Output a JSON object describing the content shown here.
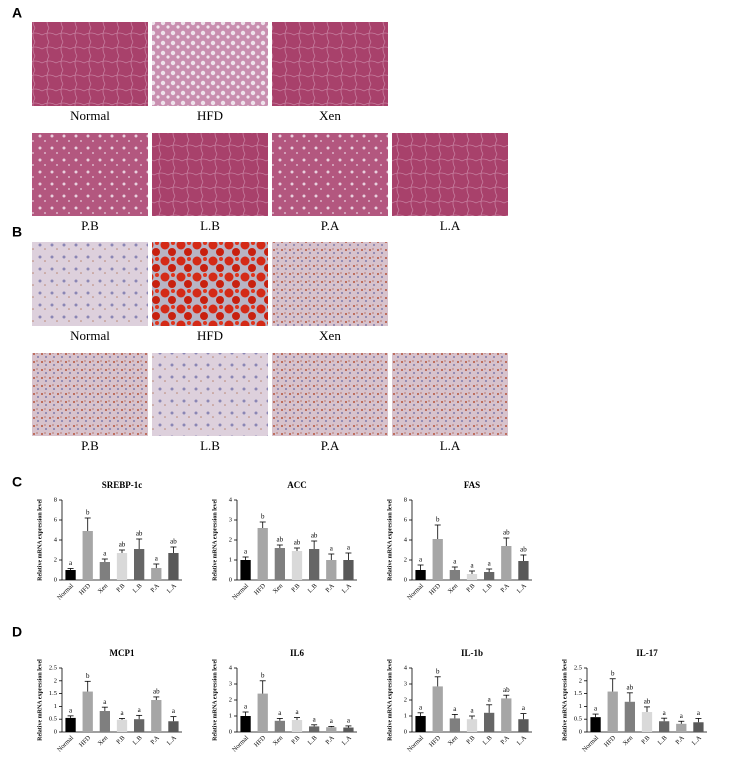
{
  "panel_labels": [
    "A",
    "B",
    "C",
    "D"
  ],
  "histology_a": {
    "labels": [
      "Normal",
      "HFD",
      "Xen",
      "P.B",
      "L.B",
      "P.A",
      "L.A"
    ]
  },
  "histology_b": {
    "labels": [
      "Normal",
      "HFD",
      "Xen",
      "P.B",
      "L.B",
      "P.A",
      "L.A"
    ]
  },
  "chart_data": [
    {
      "type": "bar",
      "title": "SREBP-1c",
      "y_label": "Relative mRNA expression level",
      "categories": [
        "Normal",
        "HFD",
        "Xen",
        "P.B",
        "L.B",
        "P.A",
        "L.A"
      ],
      "values": [
        1.0,
        4.9,
        1.8,
        2.7,
        3.1,
        1.2,
        2.7
      ],
      "errors": [
        0.15,
        1.3,
        0.3,
        0.3,
        1.0,
        0.4,
        0.6
      ],
      "annotations": [
        "a",
        "b",
        "a",
        "ab",
        "ab",
        "a",
        "ab"
      ],
      "colors": [
        "#000000",
        "#a6a6a6",
        "#7f7f7f",
        "#d9d9d9",
        "#666666",
        "#a6a6a6",
        "#595959"
      ],
      "ylim": [
        0,
        8
      ],
      "yticks": [
        0,
        2,
        4,
        6,
        8
      ]
    },
    {
      "type": "bar",
      "title": "ACC",
      "y_label": "Relative mRNA expression level",
      "categories": [
        "Normal",
        "HFD",
        "Xen",
        "P.B",
        "L.B",
        "P.A",
        "L.A"
      ],
      "values": [
        1.0,
        2.6,
        1.6,
        1.45,
        1.55,
        1.0,
        1.0
      ],
      "errors": [
        0.15,
        0.3,
        0.15,
        0.15,
        0.4,
        0.3,
        0.35
      ],
      "annotations": [
        "a",
        "b",
        "ab",
        "ab",
        "ab",
        "a",
        "a"
      ],
      "colors": [
        "#000000",
        "#a6a6a6",
        "#7f7f7f",
        "#d9d9d9",
        "#666666",
        "#a6a6a6",
        "#595959"
      ],
      "ylim": [
        0,
        4
      ],
      "yticks": [
        0,
        1,
        2,
        3,
        4
      ]
    },
    {
      "type": "bar",
      "title": "FAS",
      "y_label": "Relative mRNA expression level",
      "categories": [
        "Normal",
        "HFD",
        "Xen",
        "P.B",
        "L.B",
        "P.A",
        "L.A"
      ],
      "values": [
        1.0,
        4.1,
        1.0,
        0.6,
        0.8,
        3.4,
        1.9
      ],
      "errors": [
        0.5,
        1.4,
        0.3,
        0.3,
        0.3,
        0.8,
        0.6
      ],
      "annotations": [
        "a",
        "b",
        "a",
        "a",
        "a",
        "ab",
        "ab"
      ],
      "colors": [
        "#000000",
        "#a6a6a6",
        "#7f7f7f",
        "#d9d9d9",
        "#666666",
        "#a6a6a6",
        "#595959"
      ],
      "ylim": [
        0,
        8
      ],
      "yticks": [
        0,
        2,
        4,
        6,
        8
      ]
    },
    {
      "type": "bar",
      "title": "MCP1",
      "y_label": "Relative mRNA expression level",
      "categories": [
        "Normal",
        "HFD",
        "Xen",
        "P.B",
        "L.B",
        "P.A",
        "L.A"
      ],
      "values": [
        0.55,
        1.58,
        0.82,
        0.48,
        0.5,
        1.25,
        0.42
      ],
      "errors": [
        0.08,
        0.4,
        0.15,
        0.05,
        0.15,
        0.12,
        0.18
      ],
      "annotations": [
        "a",
        "b",
        "a",
        "a",
        "a",
        "ab",
        "a"
      ],
      "colors": [
        "#000000",
        "#a6a6a6",
        "#7f7f7f",
        "#d9d9d9",
        "#666666",
        "#a6a6a6",
        "#595959"
      ],
      "ylim": [
        0,
        2.5
      ],
      "yticks": [
        0,
        0.5,
        1,
        1.5,
        2,
        2.5
      ]
    },
    {
      "type": "bar",
      "title": "IL6",
      "y_label": "Relative mRNA expression level",
      "categories": [
        "Normal",
        "HFD",
        "Xen",
        "P.B",
        "L.B",
        "P.A",
        "L.A"
      ],
      "values": [
        1.0,
        2.4,
        0.7,
        0.75,
        0.35,
        0.3,
        0.28
      ],
      "errors": [
        0.25,
        0.8,
        0.15,
        0.15,
        0.1,
        0.05,
        0.1
      ],
      "annotations": [
        "a",
        "b",
        "a",
        "a",
        "a",
        "a",
        "a"
      ],
      "colors": [
        "#000000",
        "#a6a6a6",
        "#7f7f7f",
        "#d9d9d9",
        "#666666",
        "#a6a6a6",
        "#595959"
      ],
      "ylim": [
        0,
        4
      ],
      "yticks": [
        0,
        1,
        2,
        3,
        4
      ]
    },
    {
      "type": "bar",
      "title": "IL-1b",
      "y_label": "Relative mRNA expression level",
      "categories": [
        "Normal",
        "HFD",
        "Xen",
        "P.B",
        "L.B",
        "P.A",
        "L.A"
      ],
      "values": [
        1.0,
        2.85,
        0.85,
        0.8,
        1.2,
        2.1,
        0.8
      ],
      "errors": [
        0.2,
        0.6,
        0.25,
        0.2,
        0.5,
        0.2,
        0.35
      ],
      "annotations": [
        "a",
        "b",
        "a",
        "a",
        "a",
        "ab",
        "a"
      ],
      "colors": [
        "#000000",
        "#a6a6a6",
        "#7f7f7f",
        "#d9d9d9",
        "#666666",
        "#a6a6a6",
        "#595959"
      ],
      "ylim": [
        0,
        4
      ],
      "yticks": [
        0,
        1,
        2,
        3,
        4
      ]
    },
    {
      "type": "bar",
      "title": "IL-17",
      "y_label": "Relative mRNA expression level",
      "categories": [
        "Normal",
        "HFD",
        "Xen",
        "P.B",
        "L.B",
        "P.A",
        "L.A"
      ],
      "values": [
        0.58,
        1.58,
        1.18,
        0.78,
        0.42,
        0.32,
        0.38
      ],
      "errors": [
        0.12,
        0.5,
        0.35,
        0.2,
        0.12,
        0.1,
        0.15
      ],
      "annotations": [
        "a",
        "b",
        "ab",
        "ab",
        "a",
        "a",
        "a"
      ],
      "colors": [
        "#000000",
        "#a6a6a6",
        "#7f7f7f",
        "#d9d9d9",
        "#666666",
        "#a6a6a6",
        "#595959"
      ],
      "ylim": [
        0,
        2.5
      ],
      "yticks": [
        0,
        0.5,
        1,
        1.5,
        2,
        2.5
      ]
    }
  ]
}
